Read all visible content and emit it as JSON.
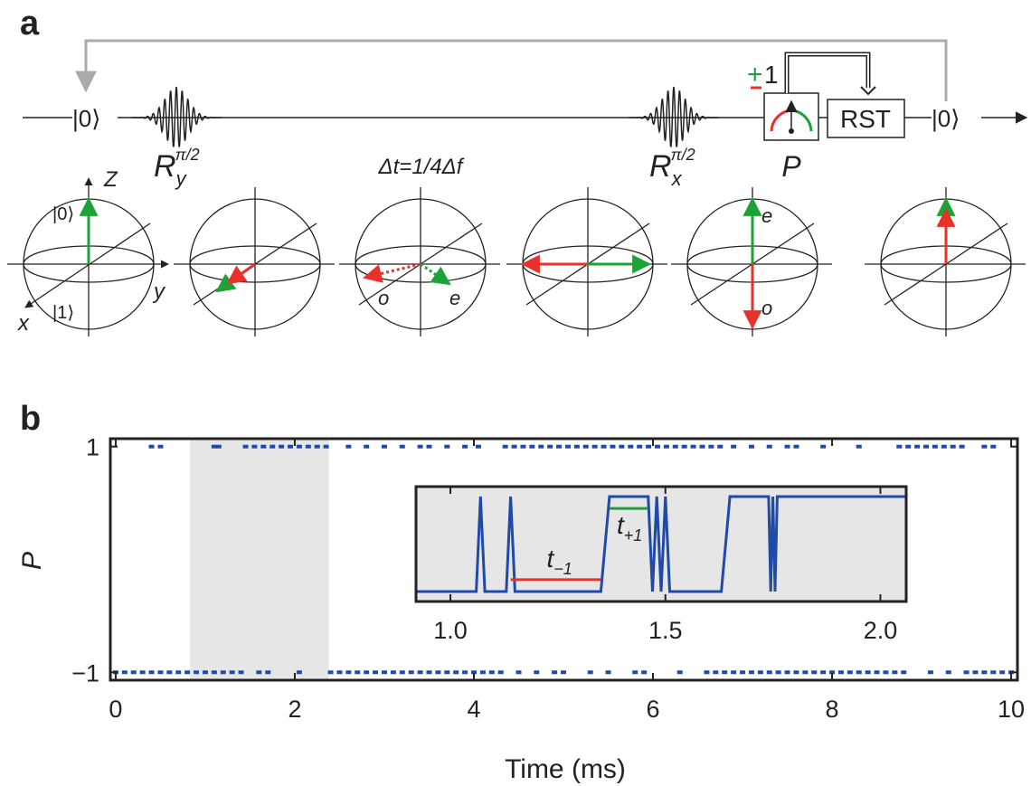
{
  "panel_a": {
    "label": "a",
    "ket_start": "|0⟩",
    "ket_end": "|0⟩",
    "pulse1": {
      "R": "R",
      "sub": "y",
      "sup": "π/2"
    },
    "pulse2": {
      "R": "R",
      "sub": "x",
      "sup": "π/2"
    },
    "delay": "Δt=1/4Δf",
    "measure": "P",
    "reset": "RST",
    "outcome_plus": "+",
    "outcome_one": "1",
    "bloch": {
      "z": "Z",
      "ket0": "|0⟩",
      "ket1": "|1⟩",
      "x": "x",
      "y": "y",
      "o1": "o",
      "e1": "e",
      "e2": "e",
      "o2": "o"
    }
  },
  "chart_data": {
    "type": "scatter",
    "panel_label": "b",
    "ylabel": "P",
    "xlabel": "Time (ms)",
    "xlim": [
      -0.06,
      10.07
    ],
    "ylim": [
      -1.07,
      1.07
    ],
    "xticks": [
      0,
      2,
      4,
      6,
      8,
      10
    ],
    "yticks": [
      {
        "value": -1,
        "label": "−1"
      },
      1
    ],
    "color": "#1f4aa8",
    "shaded_span": [
      0.83,
      2.38
    ],
    "shade_color": "#e6e6e6",
    "points": [
      [
        0.4,
        1
      ],
      [
        0.5,
        1
      ],
      [
        1.1,
        1
      ],
      [
        1.15,
        1
      ],
      [
        1.45,
        1
      ],
      [
        1.55,
        1
      ],
      [
        1.65,
        1
      ],
      [
        1.75,
        1
      ],
      [
        1.85,
        1
      ],
      [
        1.95,
        1
      ],
      [
        2.05,
        1
      ],
      [
        2.15,
        1
      ],
      [
        2.25,
        1
      ],
      [
        2.35,
        1
      ],
      [
        2.6,
        1
      ],
      [
        2.8,
        1
      ],
      [
        3.0,
        1
      ],
      [
        3.2,
        1
      ],
      [
        3.4,
        1
      ],
      [
        3.5,
        1
      ],
      [
        3.7,
        1
      ],
      [
        3.9,
        1
      ],
      [
        4.05,
        1
      ],
      [
        4.35,
        1
      ],
      [
        4.45,
        1
      ],
      [
        4.55,
        1
      ],
      [
        4.65,
        1
      ],
      [
        4.75,
        1
      ],
      [
        4.85,
        1
      ],
      [
        4.95,
        1
      ],
      [
        5.05,
        1
      ],
      [
        5.15,
        1
      ],
      [
        5.25,
        1
      ],
      [
        5.35,
        1
      ],
      [
        5.45,
        1
      ],
      [
        5.55,
        1
      ],
      [
        5.65,
        1
      ],
      [
        5.75,
        1
      ],
      [
        5.85,
        1
      ],
      [
        5.95,
        1
      ],
      [
        6.05,
        1
      ],
      [
        6.15,
        1
      ],
      [
        6.25,
        1
      ],
      [
        6.35,
        1
      ],
      [
        6.45,
        1
      ],
      [
        6.55,
        1
      ],
      [
        6.65,
        1
      ],
      [
        6.75,
        1
      ],
      [
        6.9,
        1
      ],
      [
        7.1,
        1
      ],
      [
        7.3,
        1
      ],
      [
        7.5,
        1
      ],
      [
        7.6,
        1
      ],
      [
        7.9,
        1
      ],
      [
        8.3,
        1
      ],
      [
        8.75,
        1
      ],
      [
        8.85,
        1
      ],
      [
        8.95,
        1
      ],
      [
        9.05,
        1
      ],
      [
        9.15,
        1
      ],
      [
        9.25,
        1
      ],
      [
        9.35,
        1
      ],
      [
        9.45,
        1
      ],
      [
        9.7,
        1
      ],
      [
        9.8,
        1
      ],
      [
        0.0,
        -1
      ],
      [
        0.1,
        -1
      ],
      [
        0.2,
        -1
      ],
      [
        0.3,
        -1
      ],
      [
        0.4,
        -1
      ],
      [
        0.5,
        -1
      ],
      [
        0.6,
        -1
      ],
      [
        0.7,
        -1
      ],
      [
        0.8,
        -1
      ],
      [
        0.9,
        -1
      ],
      [
        1.0,
        -1
      ],
      [
        1.1,
        -1
      ],
      [
        1.2,
        -1
      ],
      [
        1.3,
        -1
      ],
      [
        1.4,
        -1
      ],
      [
        1.6,
        -1
      ],
      [
        1.7,
        -1
      ],
      [
        2.05,
        -1
      ],
      [
        2.4,
        -1
      ],
      [
        2.5,
        -1
      ],
      [
        2.6,
        -1
      ],
      [
        2.7,
        -1
      ],
      [
        2.8,
        -1
      ],
      [
        2.9,
        -1
      ],
      [
        3.0,
        -1
      ],
      [
        3.1,
        -1
      ],
      [
        3.2,
        -1
      ],
      [
        3.3,
        -1
      ],
      [
        3.4,
        -1
      ],
      [
        3.5,
        -1
      ],
      [
        3.6,
        -1
      ],
      [
        3.7,
        -1
      ],
      [
        3.8,
        -1
      ],
      [
        3.9,
        -1
      ],
      [
        4.0,
        -1
      ],
      [
        4.1,
        -1
      ],
      [
        4.2,
        -1
      ],
      [
        4.3,
        -1
      ],
      [
        4.5,
        -1
      ],
      [
        4.7,
        -1
      ],
      [
        4.9,
        -1
      ],
      [
        5.0,
        -1
      ],
      [
        5.3,
        -1
      ],
      [
        5.5,
        -1
      ],
      [
        5.8,
        -1
      ],
      [
        5.9,
        -1
      ],
      [
        6.3,
        -1
      ],
      [
        6.6,
        -1
      ],
      [
        6.7,
        -1
      ],
      [
        6.8,
        -1
      ],
      [
        6.9,
        -1
      ],
      [
        7.0,
        -1
      ],
      [
        7.1,
        -1
      ],
      [
        7.2,
        -1
      ],
      [
        7.3,
        -1
      ],
      [
        7.4,
        -1
      ],
      [
        7.5,
        -1
      ],
      [
        7.6,
        -1
      ],
      [
        7.7,
        -1
      ],
      [
        7.8,
        -1
      ],
      [
        7.9,
        -1
      ],
      [
        8.0,
        -1
      ],
      [
        8.1,
        -1
      ],
      [
        8.2,
        -1
      ],
      [
        8.3,
        -1
      ],
      [
        8.4,
        -1
      ],
      [
        8.5,
        -1
      ],
      [
        8.6,
        -1
      ],
      [
        8.7,
        -1
      ],
      [
        8.8,
        -1
      ],
      [
        9.1,
        -1
      ],
      [
        9.3,
        -1
      ],
      [
        9.5,
        -1
      ],
      [
        9.6,
        -1
      ],
      [
        9.7,
        -1
      ],
      [
        9.8,
        -1
      ],
      [
        9.9,
        -1
      ],
      [
        10.0,
        -1
      ]
    ],
    "inset": {
      "type": "line",
      "xlim": [
        0.92,
        2.06
      ],
      "ylim": [
        -1.21,
        1.21
      ],
      "xticks": [
        {
          "value": 1,
          "label": "1.0"
        },
        1.5,
        {
          "value": 2,
          "label": "2.0"
        }
      ],
      "color": "#1f4aa8",
      "x": [
        0.92,
        1.06,
        1.07,
        1.08,
        1.13,
        1.14,
        1.15,
        1.35,
        1.37,
        1.46,
        1.47,
        1.48,
        1.49,
        1.5,
        1.51,
        1.63,
        1.65,
        1.74,
        1.745,
        1.75,
        1.755,
        1.76,
        2.06
      ],
      "values": [
        -1,
        -1,
        1,
        -1,
        -1,
        1,
        -1,
        -1,
        1,
        1,
        -1,
        1,
        -1,
        1,
        -1,
        -1,
        1,
        1,
        -1,
        1,
        -1,
        1,
        1
      ],
      "t_minus": {
        "label": "t",
        "sub": "−1",
        "x": [
          1.14,
          1.35
        ],
        "y": -0.75,
        "color": "#e8312a"
      },
      "t_plus": {
        "label": "t",
        "sub": "+1",
        "x": [
          1.37,
          1.46
        ],
        "y": 0.75,
        "color": "#1ca337"
      }
    }
  }
}
